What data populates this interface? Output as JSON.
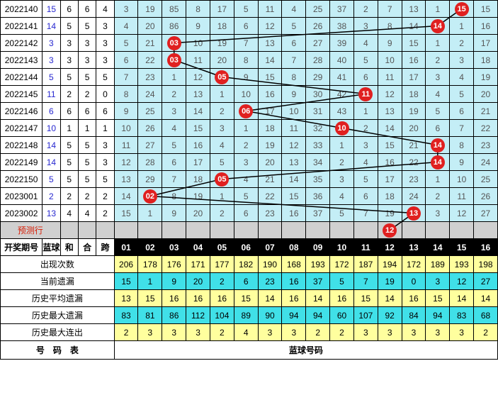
{
  "chart": {
    "type": "table",
    "colors": {
      "border": "#000000",
      "chart_bg": "#c4eef6",
      "ball": "#e02020",
      "ball_text": "#ffffff",
      "line": "#000000",
      "blue_text": "#2828d0",
      "pred_bg": "#d0d0d0",
      "pred_text": "#d81e06",
      "header_bg": "#000000",
      "header_text": "#ffffff",
      "stat_yellow": "#ffff9e",
      "stat_cyan": "#40e0e8"
    },
    "left_widths": {
      "draw": 56,
      "small": 24
    },
    "chart_col_width": 32,
    "num_cols": 16,
    "rows": [
      {
        "draw": "2022140",
        "blue": "15",
        "he": "6",
        "heb": "6",
        "kua": "4",
        "cells": [
          "3",
          "19",
          "85",
          "8",
          "17",
          "5",
          "11",
          "4",
          "25",
          "37",
          "2",
          "7",
          "13",
          "1",
          "15",
          "15"
        ],
        "ball_col": 15
      },
      {
        "draw": "2022141",
        "blue": "14",
        "he": "5",
        "heb": "5",
        "kua": "3",
        "cells": [
          "4",
          "20",
          "86",
          "9",
          "18",
          "6",
          "12",
          "5",
          "26",
          "38",
          "3",
          "8",
          "14",
          "14",
          "1",
          "16"
        ],
        "ball_col": 14
      },
      {
        "draw": "2022142",
        "blue": "3",
        "he": "3",
        "heb": "3",
        "kua": "3",
        "cells": [
          "5",
          "21",
          "03",
          "10",
          "19",
          "7",
          "13",
          "6",
          "27",
          "39",
          "4",
          "9",
          "15",
          "1",
          "2",
          "17"
        ],
        "ball_col": 3
      },
      {
        "draw": "2022143",
        "blue": "3",
        "he": "3",
        "heb": "3",
        "kua": "3",
        "cells": [
          "6",
          "22",
          "03",
          "11",
          "20",
          "8",
          "14",
          "7",
          "28",
          "40",
          "5",
          "10",
          "16",
          "2",
          "3",
          "18"
        ],
        "ball_col": 3
      },
      {
        "draw": "2022144",
        "blue": "5",
        "he": "5",
        "heb": "5",
        "kua": "5",
        "cells": [
          "7",
          "23",
          "1",
          "12",
          "05",
          "9",
          "15",
          "8",
          "29",
          "41",
          "6",
          "11",
          "17",
          "3",
          "4",
          "19"
        ],
        "ball_col": 5
      },
      {
        "draw": "2022145",
        "blue": "11",
        "he": "2",
        "heb": "2",
        "kua": "0",
        "cells": [
          "8",
          "24",
          "2",
          "13",
          "1",
          "10",
          "16",
          "9",
          "30",
          "42",
          "11",
          "12",
          "18",
          "4",
          "5",
          "20"
        ],
        "ball_col": 11
      },
      {
        "draw": "2022146",
        "blue": "6",
        "he": "6",
        "heb": "6",
        "kua": "6",
        "cells": [
          "9",
          "25",
          "3",
          "14",
          "2",
          "06",
          "17",
          "10",
          "31",
          "43",
          "1",
          "13",
          "19",
          "5",
          "6",
          "21"
        ],
        "ball_col": 6
      },
      {
        "draw": "2022147",
        "blue": "10",
        "he": "1",
        "heb": "1",
        "kua": "1",
        "cells": [
          "10",
          "26",
          "4",
          "15",
          "3",
          "1",
          "18",
          "11",
          "32",
          "10",
          "2",
          "14",
          "20",
          "6",
          "7",
          "22"
        ],
        "ball_col": 10
      },
      {
        "draw": "2022148",
        "blue": "14",
        "he": "5",
        "heb": "5",
        "kua": "3",
        "cells": [
          "11",
          "27",
          "5",
          "16",
          "4",
          "2",
          "19",
          "12",
          "33",
          "1",
          "3",
          "15",
          "21",
          "14",
          "8",
          "23"
        ],
        "ball_col": 14
      },
      {
        "draw": "2022149",
        "blue": "14",
        "he": "5",
        "heb": "5",
        "kua": "3",
        "cells": [
          "12",
          "28",
          "6",
          "17",
          "5",
          "3",
          "20",
          "13",
          "34",
          "2",
          "4",
          "16",
          "22",
          "14",
          "9",
          "24"
        ],
        "ball_col": 14
      },
      {
        "draw": "2022150",
        "blue": "5",
        "he": "5",
        "heb": "5",
        "kua": "5",
        "cells": [
          "13",
          "29",
          "7",
          "18",
          "05",
          "4",
          "21",
          "14",
          "35",
          "3",
          "5",
          "17",
          "23",
          "1",
          "10",
          "25"
        ],
        "ball_col": 5
      },
      {
        "draw": "2023001",
        "blue": "2",
        "he": "2",
        "heb": "2",
        "kua": "2",
        "cells": [
          "14",
          "02",
          "8",
          "19",
          "1",
          "5",
          "22",
          "15",
          "36",
          "4",
          "6",
          "18",
          "24",
          "2",
          "11",
          "26"
        ],
        "ball_col": 2
      },
      {
        "draw": "2023002",
        "blue": "13",
        "he": "4",
        "heb": "4",
        "kua": "2",
        "cells": [
          "15",
          "1",
          "9",
          "20",
          "2",
          "6",
          "23",
          "16",
          "37",
          "5",
          "7",
          "19",
          "13",
          "3",
          "12",
          "27"
        ],
        "ball_col": 13
      }
    ],
    "predict_row": {
      "label": "预测行",
      "ball_col": 12,
      "ball_text": "12"
    },
    "header2": {
      "c1": "开奖期号",
      "c2": "蓝球",
      "c3": "和",
      "c4": "合",
      "c5": "跨",
      "nums": [
        "01",
        "02",
        "03",
        "04",
        "05",
        "06",
        "07",
        "08",
        "09",
        "10",
        "11",
        "12",
        "13",
        "14",
        "15",
        "16"
      ]
    },
    "stats": [
      {
        "label": "出现次数",
        "cls": "stat-yel",
        "v": [
          "206",
          "178",
          "176",
          "171",
          "177",
          "182",
          "190",
          "168",
          "193",
          "172",
          "187",
          "194",
          "172",
          "189",
          "193",
          "198"
        ]
      },
      {
        "label": "当前遗漏",
        "cls": "stat-cyan",
        "v": [
          "15",
          "1",
          "9",
          "20",
          "2",
          "6",
          "23",
          "16",
          "37",
          "5",
          "7",
          "19",
          "0",
          "3",
          "12",
          "27"
        ]
      },
      {
        "label": "历史平均遗漏",
        "cls": "stat-yel",
        "v": [
          "13",
          "15",
          "16",
          "16",
          "16",
          "15",
          "14",
          "16",
          "14",
          "16",
          "15",
          "14",
          "16",
          "15",
          "14",
          "14"
        ]
      },
      {
        "label": "历史最大遗漏",
        "cls": "stat-cyan",
        "v": [
          "83",
          "81",
          "86",
          "112",
          "104",
          "89",
          "90",
          "94",
          "94",
          "60",
          "107",
          "92",
          "84",
          "94",
          "83",
          "68"
        ]
      },
      {
        "label": "历史最大连出",
        "cls": "stat-yel",
        "v": [
          "2",
          "3",
          "3",
          "3",
          "2",
          "4",
          "3",
          "3",
          "2",
          "2",
          "3",
          "3",
          "3",
          "3",
          "3",
          "2"
        ]
      }
    ],
    "footer": {
      "left": "号　码　表",
      "right": "蓝球号码"
    }
  }
}
